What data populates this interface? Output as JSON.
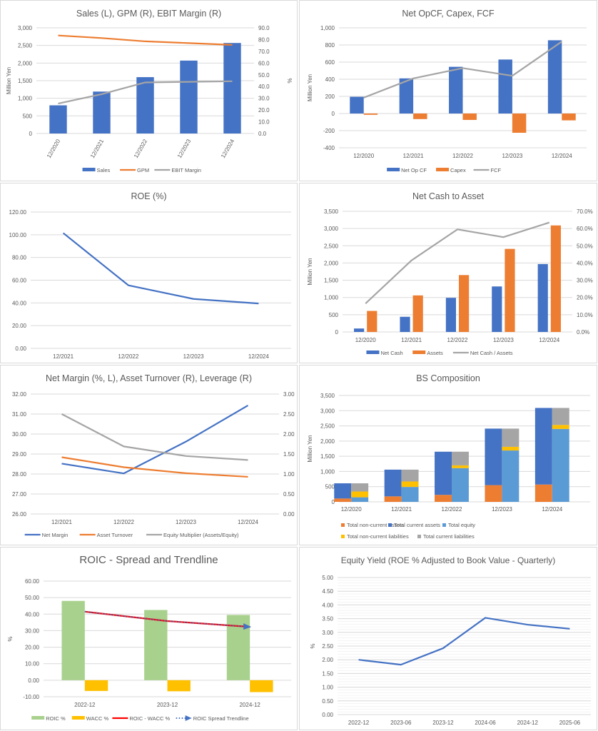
{
  "colors": {
    "blue": "#4472C4",
    "orange": "#ED7D31",
    "gray": "#A5A5A5",
    "lightblue": "#5B9BD5",
    "yellow": "#FFC000",
    "green": "#A9D18E",
    "red": "#FF0000",
    "negative_tick": "#FF0000"
  },
  "chart_data": [
    {
      "id": "sales",
      "type": "bar",
      "title": "Sales (L), GPM (R), EBIT Margin (R)",
      "categories": [
        "12/2020",
        "12/2021",
        "12/2022",
        "12/2023",
        "12/2024"
      ],
      "xlabel": "",
      "ylabel": "Million Yen",
      "y2label": "%",
      "ylim": [
        0,
        3000
      ],
      "y2lim": [
        0,
        90
      ],
      "yticks": [
        "0",
        "500",
        "1,000",
        "1,500",
        "2,000",
        "2,500",
        "3,000"
      ],
      "y2ticks": [
        "0.0",
        "10.0",
        "20.0",
        "30.0",
        "40.0",
        "50.0",
        "60.0",
        "70.0",
        "80.0",
        "90.0"
      ],
      "grid": true,
      "legend": "bottom",
      "series": [
        {
          "name": "Sales",
          "kind": "bar",
          "axis": "left",
          "color": "#4472C4",
          "values": [
            800,
            1190,
            1600,
            2070,
            2570
          ]
        },
        {
          "name": "GPM",
          "kind": "line",
          "axis": "right",
          "color": "#ED7D31",
          "values": [
            83.5,
            81.3,
            78.5,
            77.0,
            75.5
          ]
        },
        {
          "name": "EBIT Margin",
          "kind": "line",
          "axis": "right",
          "color": "#A5A5A5",
          "values": [
            25.5,
            33.5,
            43.5,
            44.0,
            44.5
          ]
        }
      ]
    },
    {
      "id": "cashflow",
      "type": "bar",
      "title": "Net OpCF, Capex, FCF",
      "categories": [
        "12/2020",
        "12/2021",
        "12/2022",
        "12/2023",
        "12/2024"
      ],
      "ylabel": "Million Yen",
      "ylim": [
        -400,
        1000
      ],
      "yticks": [
        "-400",
        "-200",
        "0",
        "200",
        "400",
        "600",
        "800",
        "1,000"
      ],
      "grid": true,
      "legend": "bottom",
      "series": [
        {
          "name": "Net Op CF",
          "kind": "bar",
          "color": "#4472C4",
          "values": [
            195,
            410,
            545,
            630,
            855
          ]
        },
        {
          "name": "Capex",
          "kind": "bar",
          "color": "#ED7D31",
          "values": [
            -15,
            -65,
            -75,
            -225,
            -80
          ]
        },
        {
          "name": "FCF",
          "kind": "line",
          "color": "#A5A5A5",
          "values": [
            185,
            410,
            530,
            440,
            840
          ]
        }
      ]
    },
    {
      "id": "roe",
      "type": "line",
      "title": "ROE (%)",
      "categories": [
        "12/2021",
        "12/2022",
        "12/2023",
        "12/2024"
      ],
      "ylim": [
        0,
        120
      ],
      "yticks": [
        "0.00",
        "20.00",
        "40.00",
        "60.00",
        "80.00",
        "100.00",
        "120.00"
      ],
      "grid": true,
      "legend": "none",
      "series": [
        {
          "name": "ROE",
          "kind": "line",
          "color": "#4472C4",
          "values": [
            101.5,
            55.5,
            43.5,
            39.5
          ]
        }
      ]
    },
    {
      "id": "netcash",
      "type": "bar",
      "title": "Net Cash to Asset",
      "categories": [
        "12/2020",
        "12/2021",
        "12/2022",
        "12/2023",
        "12/2024"
      ],
      "ylabel": "Million Yen",
      "ylim": [
        0,
        3500
      ],
      "y2lim": [
        0,
        70
      ],
      "yticks": [
        "0",
        "500",
        "1,000",
        "1,500",
        "2,000",
        "2,500",
        "3,000",
        "3,500"
      ],
      "y2ticks": [
        "0.0%",
        "10.0%",
        "20.0%",
        "30.0%",
        "40.0%",
        "50.0%",
        "60.0%",
        "70.0%"
      ],
      "grid": true,
      "legend": "bottom",
      "series": [
        {
          "name": "Net Cash",
          "kind": "bar",
          "axis": "left",
          "color": "#4472C4",
          "values": [
            100,
            440,
            990,
            1320,
            1970
          ]
        },
        {
          "name": "Assets",
          "kind": "bar",
          "axis": "left",
          "color": "#ED7D31",
          "values": [
            610,
            1060,
            1650,
            2410,
            3090
          ]
        },
        {
          "name": "Net Cash / Assets",
          "kind": "line",
          "axis": "right",
          "color": "#A5A5A5",
          "values": [
            16.5,
            41.5,
            59.5,
            55.0,
            63.5
          ]
        }
      ]
    },
    {
      "id": "dupont",
      "type": "line",
      "title": "Net Margin (%, L), Asset Turnover (R), Leverage (R)",
      "categories": [
        "12/2021",
        "12/2022",
        "12/2023",
        "12/2024"
      ],
      "ylim": [
        26,
        32
      ],
      "y2lim": [
        0,
        3
      ],
      "yticks": [
        "26.00",
        "27.00",
        "28.00",
        "29.00",
        "30.00",
        "31.00",
        "32.00"
      ],
      "y2ticks": [
        "0.00",
        "0.50",
        "1.00",
        "1.50",
        "2.00",
        "2.50",
        "3.00"
      ],
      "grid": true,
      "legend": "bottom",
      "series": [
        {
          "name": "Net Margin",
          "kind": "line",
          "axis": "left",
          "color": "#4472C4",
          "values": [
            28.52,
            28.03,
            29.62,
            31.43
          ]
        },
        {
          "name": "Asset Turnover",
          "kind": "line",
          "axis": "right",
          "color": "#ED7D31",
          "values": [
            1.42,
            1.17,
            1.02,
            0.93
          ]
        },
        {
          "name": "Equity Multiplier (Assets/Equity)",
          "kind": "line",
          "axis": "right",
          "color": "#A5A5A5",
          "values": [
            2.5,
            1.69,
            1.45,
            1.35
          ]
        }
      ]
    },
    {
      "id": "bs",
      "type": "bar",
      "stacked": true,
      "title": "BS Composition",
      "categories": [
        "12/2020",
        "12/2021",
        "12/2022",
        "12/2023",
        "12/2024"
      ],
      "ylabel": "Million Yen",
      "ylim": [
        0,
        3500
      ],
      "yticks": [
        "0",
        "500",
        "1,000",
        "1,500",
        "2,000",
        "2,500",
        "3,000",
        "3,500"
      ],
      "grid": true,
      "legend": "bottom",
      "series": [
        {
          "name": "Total non-current assets",
          "stack": "assets",
          "color": "#ED7D31",
          "values": [
            110,
            180,
            230,
            550,
            570
          ]
        },
        {
          "name": "Total current assets",
          "stack": "assets",
          "color": "#4472C4",
          "values": [
            500,
            880,
            1420,
            1860,
            2520
          ]
        },
        {
          "name": "Total equity",
          "stack": "liab",
          "color": "#5B9BD5",
          "values": [
            150,
            490,
            1110,
            1690,
            2400
          ]
        },
        {
          "name": "Total non-current liabilities",
          "stack": "liab",
          "color": "#FFC000",
          "values": [
            190,
            180,
            90,
            120,
            130
          ]
        },
        {
          "name": "Total current liabilities",
          "stack": "liab",
          "color": "#A5A5A5",
          "values": [
            270,
            390,
            450,
            600,
            560
          ]
        }
      ]
    },
    {
      "id": "roic",
      "type": "bar",
      "title": "ROIC - Spread and Trendline",
      "categories": [
        "2022-12",
        "2023-12",
        "2024-12"
      ],
      "ylabel": "%",
      "ylim": [
        -10,
        60
      ],
      "yticks": [
        "-10.00",
        "0.00",
        "10.00",
        "20.00",
        "30.00",
        "40.00",
        "50.00",
        "60.00"
      ],
      "grid": true,
      "legend": "bottom",
      "series": [
        {
          "name": "ROIC %",
          "kind": "bar",
          "color": "#A9D18E",
          "values": [
            48.0,
            42.5,
            39.5
          ]
        },
        {
          "name": "WACC %",
          "kind": "bar",
          "color": "#FFC000",
          "values": [
            -6.5,
            -6.7,
            -7.2
          ]
        },
        {
          "name": "ROIC - WACC %",
          "kind": "line",
          "color": "#FF0000",
          "values": [
            41.5,
            35.8,
            32.3
          ]
        },
        {
          "name": "ROIC Spread Trendline",
          "kind": "trend",
          "color": "#4472C4",
          "values": [
            41.5,
            35.8,
            32.3
          ]
        }
      ]
    },
    {
      "id": "equityyield",
      "type": "line",
      "title": "Equity Yield (ROE % Adjusted to Book Value - Quarterly)",
      "categories": [
        "2022-12",
        "2023-06",
        "2023-12",
        "2024-06",
        "2024-12",
        "2025-06"
      ],
      "ylabel": "%",
      "ylim": [
        0,
        5
      ],
      "yticks": [
        "0.00",
        "0.50",
        "1.00",
        "1.50",
        "2.00",
        "2.50",
        "3.00",
        "3.50",
        "4.00",
        "4.50",
        "5.00"
      ],
      "grid": true,
      "legend": "none",
      "series": [
        {
          "name": "Equity Yield",
          "kind": "line",
          "color": "#4472C4",
          "values": [
            2.0,
            1.82,
            2.42,
            3.53,
            3.28,
            3.13
          ]
        }
      ]
    }
  ]
}
